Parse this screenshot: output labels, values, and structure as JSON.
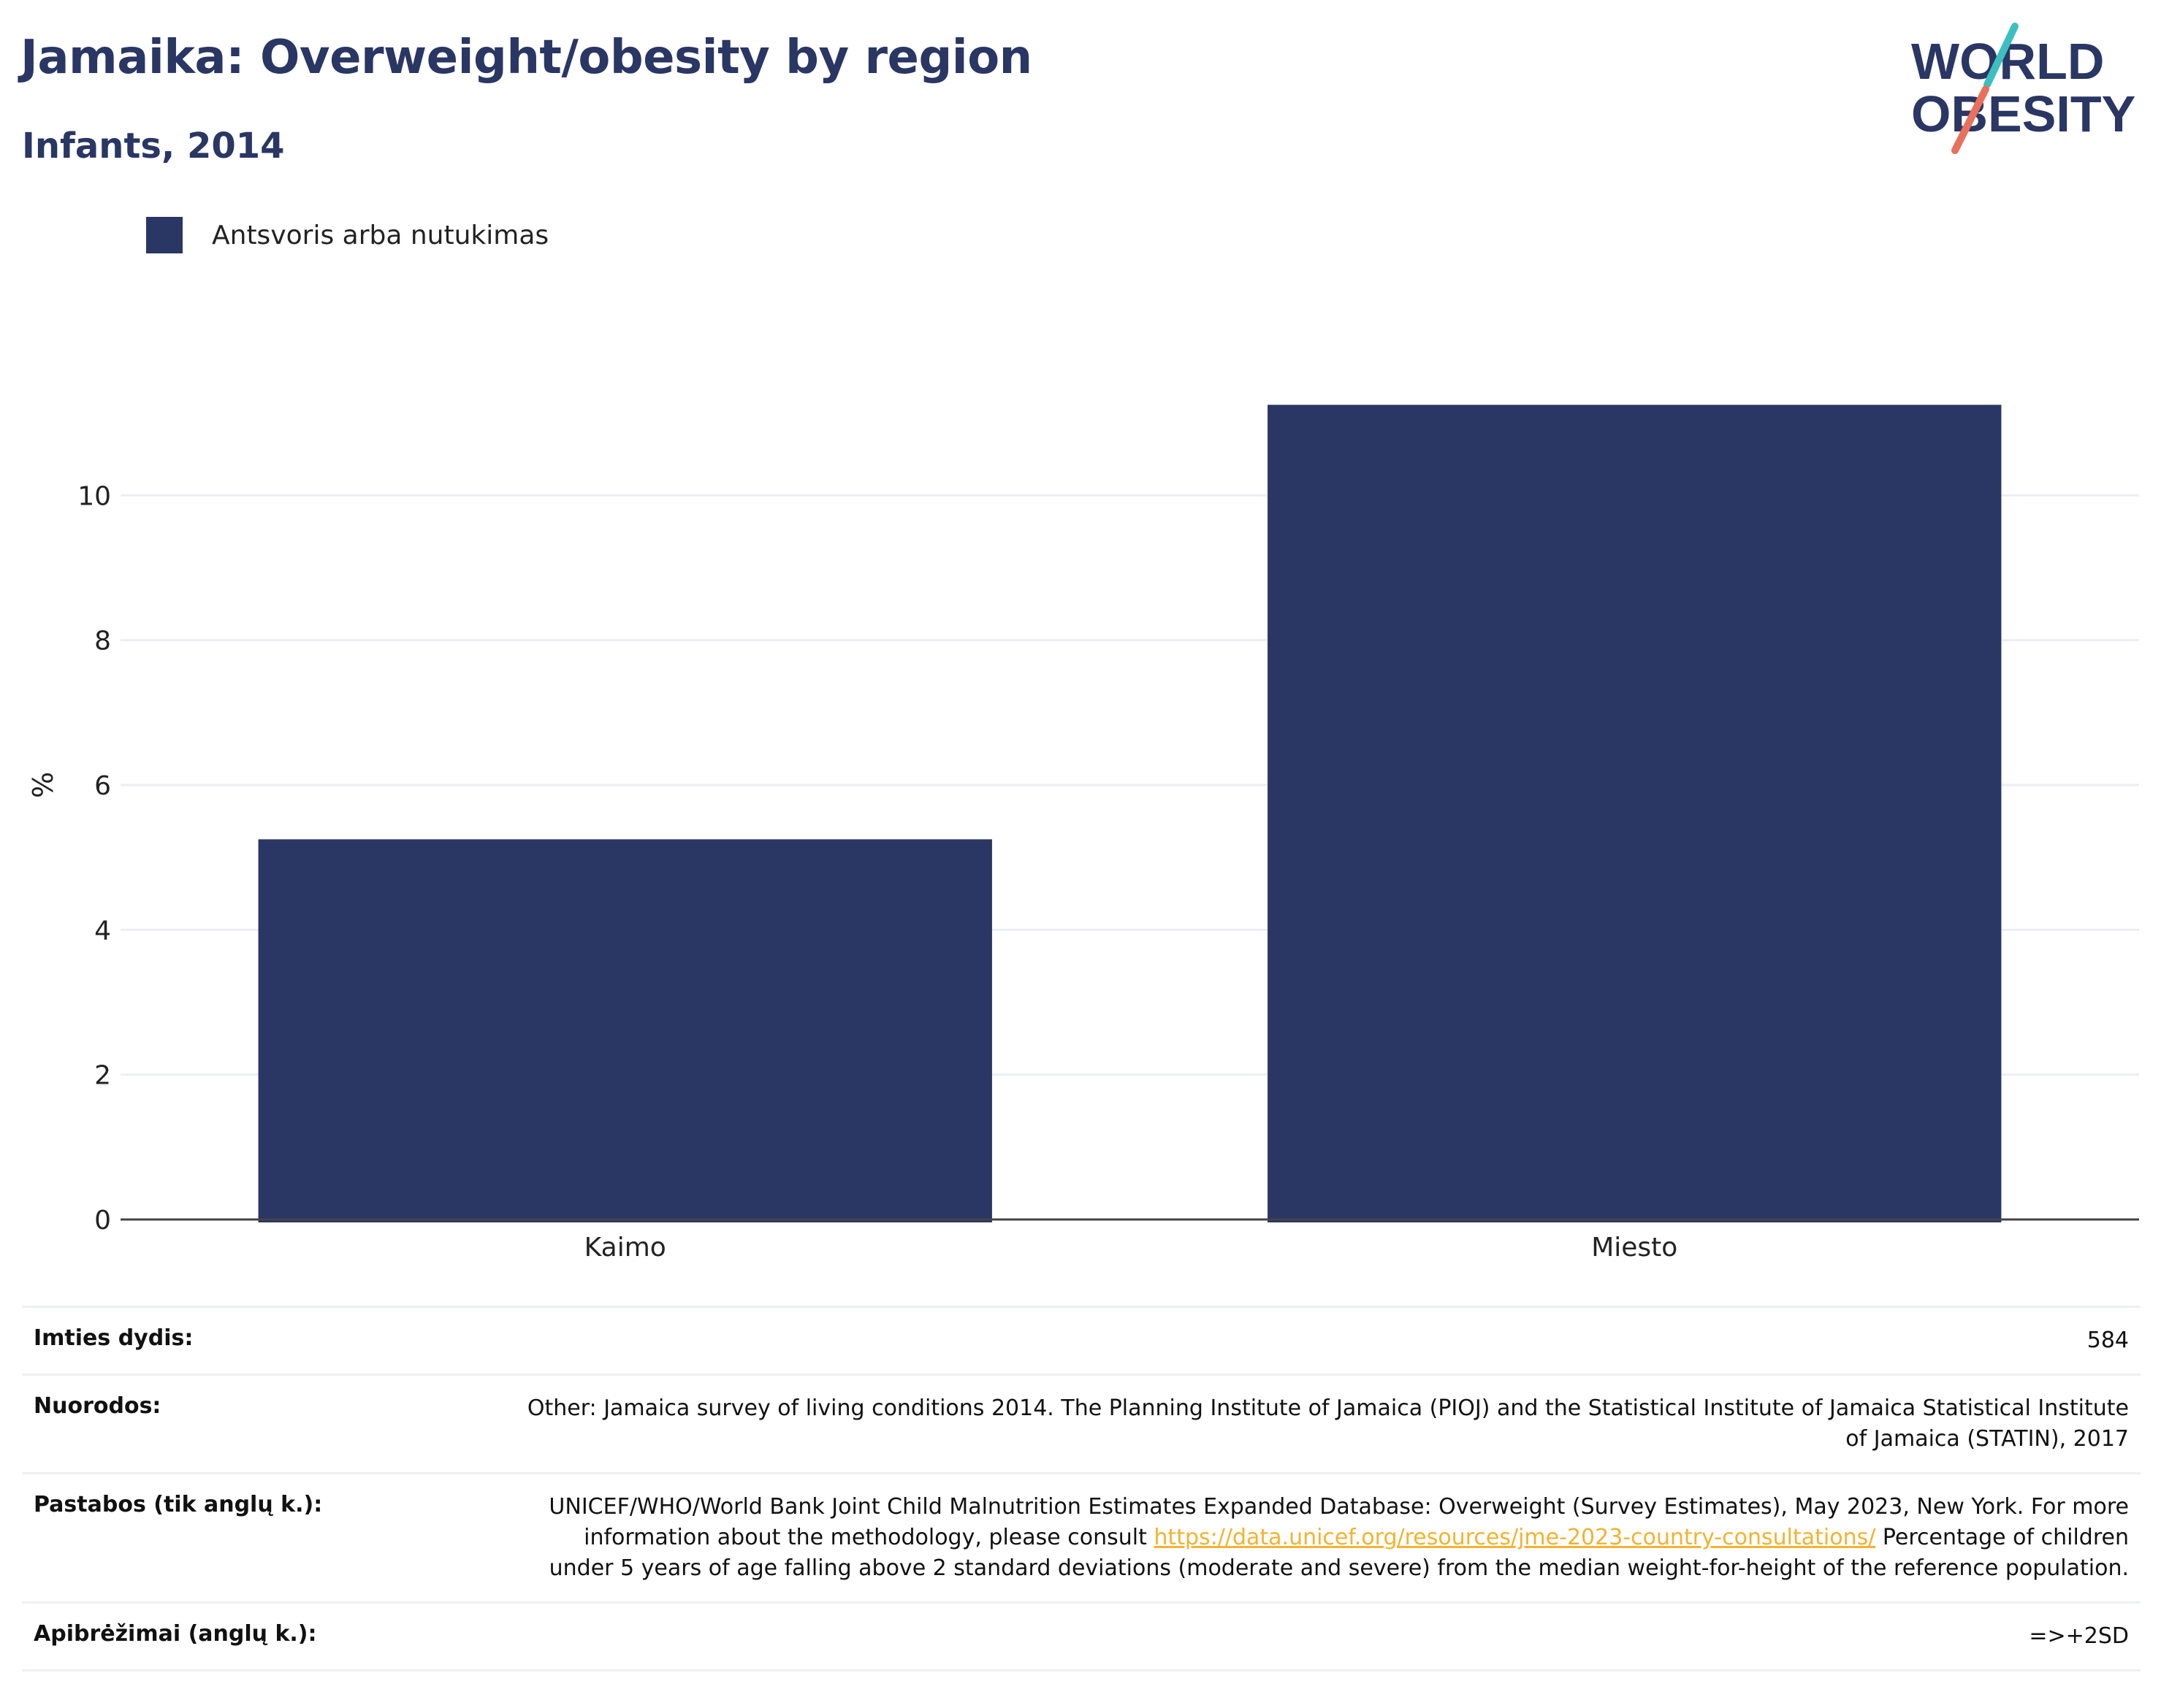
{
  "header": {
    "title": "Jamaika: Overweight/obesity by region",
    "subtitle": "Infants, 2014"
  },
  "logo": {
    "line1": "WORLD",
    "line2": "OBESITY",
    "colors": {
      "text": "#2a3663",
      "slash_top": "#3bbfbf",
      "slash_bottom": "#e8705c"
    }
  },
  "legend": {
    "label": "Antsvoris arba nutukimas",
    "color": "#2a3663"
  },
  "chart_data": {
    "type": "bar",
    "categories": [
      "Kaimo",
      "Miesto"
    ],
    "series": [
      {
        "name": "Antsvoris arba nutukimas",
        "values": [
          5.25,
          11.25
        ],
        "color": "#2a3663"
      }
    ],
    "title": "Jamaika: Overweight/obesity by region",
    "subtitle": "Infants, 2014",
    "xlabel": "",
    "ylabel": "%",
    "ylim": [
      0,
      12
    ],
    "yticks": [
      0,
      2,
      4,
      6,
      8,
      10
    ],
    "grid": true,
    "legend_position": "top-left"
  },
  "info": {
    "sample_label": "Imties dydis:",
    "sample_value": "584",
    "refs_label": "Nuorodos:",
    "refs_value": "Other: Jamaica survey of living conditions 2014. The Planning Institute of Jamaica (PIOJ) and the Statistical Institute of Jamaica Statistical Institute of Jamaica (STATIN), 2017",
    "notes_label": "Pastabos (tik anglų k.):",
    "notes_text_1": "UNICEF/WHO/World Bank Joint Child Malnutrition Estimates Expanded Database: Overweight (Survey Estimates), May 2023, New York. For more information about the methodology, please consult",
    "notes_link": "https://data.unicef.org/resources/jme-2023-country-consultations/",
    "notes_text_2": "Percentage of children under 5 years of age falling above 2 standard deviations (moderate and severe) from the median weight-for-height of the reference population.",
    "defs_label": "Apibrėžimai (anglų k.):",
    "defs_value": "=>+2SD"
  }
}
